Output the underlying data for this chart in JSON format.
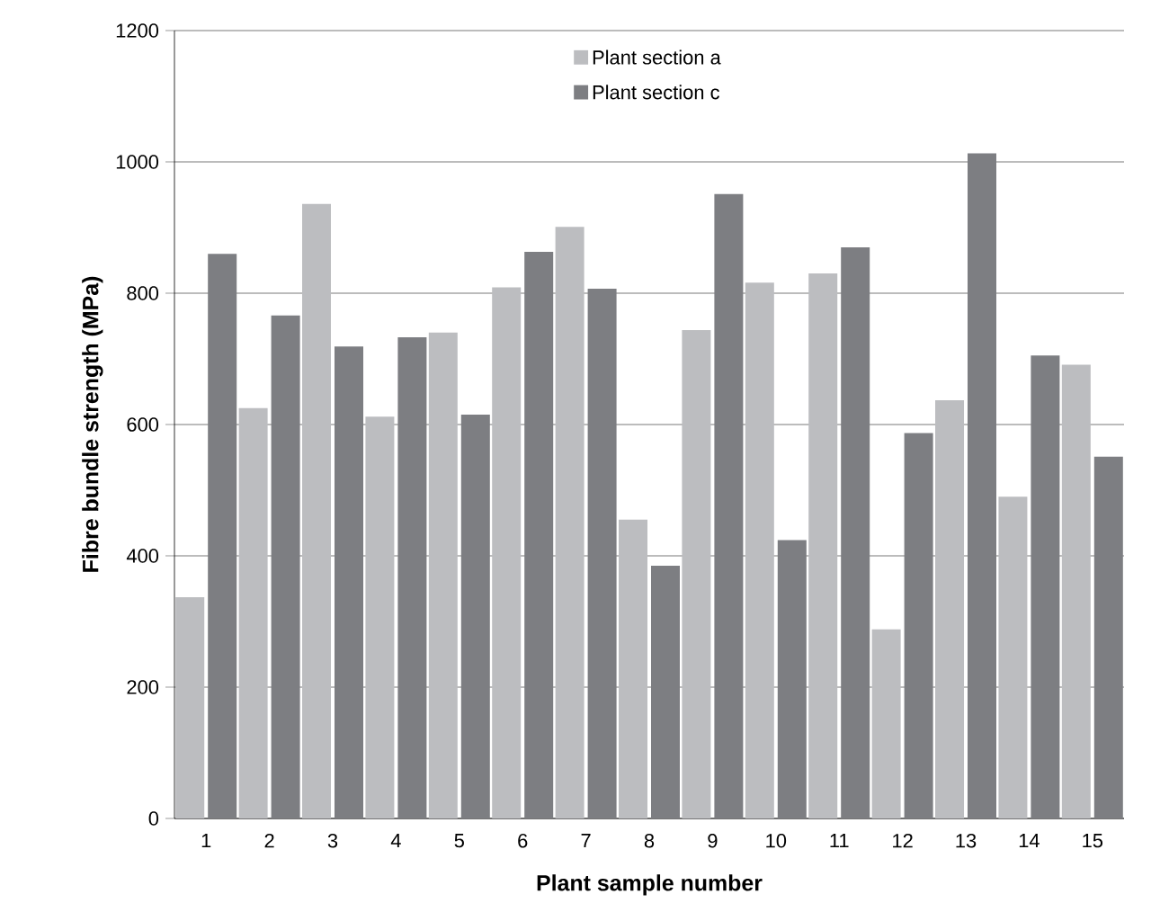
{
  "chart_data": {
    "type": "bar",
    "xlabel": "Plant sample number",
    "ylabel": "Fibre bundle strength (MPa)",
    "categories": [
      "1",
      "2",
      "3",
      "4",
      "5",
      "6",
      "7",
      "8",
      "9",
      "10",
      "11",
      "12",
      "13",
      "14",
      "15"
    ],
    "series": [
      {
        "name": "Plant section a",
        "color": "#bcbdc0",
        "values": [
          337,
          625,
          936,
          612,
          740,
          809,
          901,
          455,
          744,
          816,
          830,
          288,
          637,
          490,
          691
        ]
      },
      {
        "name": "Plant section c",
        "color": "#7d7e82",
        "values": [
          860,
          766,
          719,
          733,
          615,
          863,
          807,
          385,
          951,
          424,
          870,
          587,
          1013,
          705,
          551
        ]
      }
    ],
    "ylim": [
      0,
      1200
    ],
    "yticks": [
      0,
      200,
      400,
      600,
      800,
      1000,
      1200
    ],
    "grid": "y",
    "legend": "top"
  }
}
